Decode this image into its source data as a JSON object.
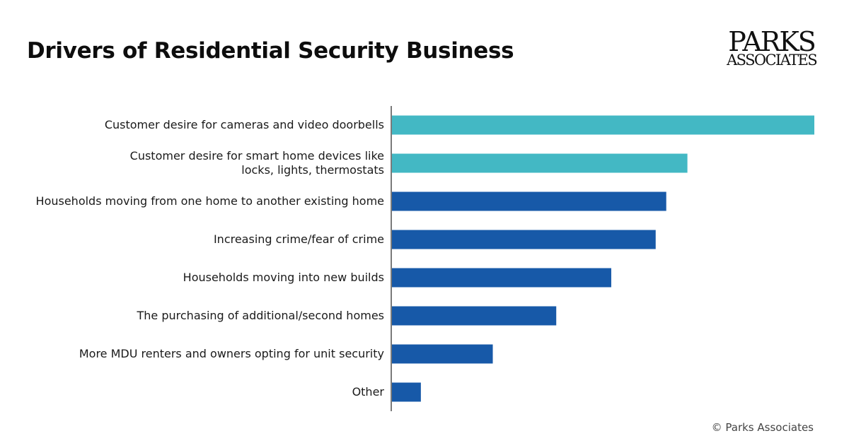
{
  "title": "Drivers of Residential Security Business",
  "logo": {
    "line1": "PARKS",
    "line2": "ASSOCIATES"
  },
  "copyright": "© Parks Associates",
  "chart_data": {
    "type": "bar",
    "orientation": "horizontal",
    "title": "Drivers of Residential Security Business",
    "xlabel": "",
    "ylabel": "",
    "xlim": [
      0,
      100
    ],
    "grid": false,
    "legend": "none",
    "categories": [
      [
        "Customer desire for cameras and video doorbells"
      ],
      [
        "Customer desire for smart home devices like",
        "locks, lights, thermostats"
      ],
      [
        "Households moving from one home to another existing home"
      ],
      [
        "Increasing crime/fear of crime"
      ],
      [
        "Households moving into new builds"
      ],
      [
        "The purchasing of additional/second homes"
      ],
      [
        "More MDU renters and owners opting for unit security"
      ],
      [
        "Other"
      ]
    ],
    "values": [
      100,
      70,
      65,
      62.5,
      52,
      39,
      24,
      7
    ],
    "colors": [
      "#43b8c4",
      "#43b8c4",
      "#1759a8",
      "#1759a8",
      "#1759a8",
      "#1759a8",
      "#1759a8",
      "#1759a8"
    ]
  }
}
